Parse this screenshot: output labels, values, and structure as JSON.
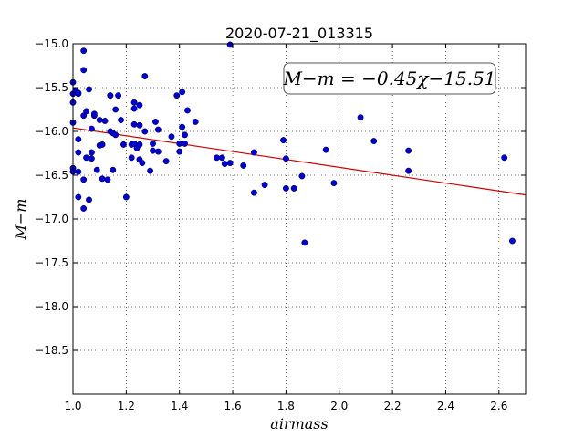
{
  "chart_data": {
    "type": "scatter",
    "title": "2020-07-21_013315",
    "xlabel": "airmass",
    "ylabel": "M−m",
    "xlim": [
      1.0,
      2.7
    ],
    "ylim": [
      -15.0,
      -19.0
    ],
    "y_inverted": true,
    "grid": true,
    "x_ticks": [
      1.0,
      1.2,
      1.4,
      1.6,
      1.8,
      2.0,
      2.2,
      2.4,
      2.6
    ],
    "x_tick_labels": [
      "1.0",
      "1.2",
      "1.4",
      "1.6",
      "1.8",
      "2.0",
      "2.2",
      "2.4",
      "2.6"
    ],
    "y_ticks": [
      -15.0,
      -15.5,
      -16.0,
      -16.5,
      -17.0,
      -17.5,
      -18.0,
      -18.5
    ],
    "y_tick_labels": [
      "−15.0",
      "−15.5",
      "−16.0",
      "−16.5",
      "−17.0",
      "−17.5",
      "−18.0",
      "−18.5"
    ],
    "annotation": "M−m = −0.45χ−15.51",
    "fit": {
      "slope": -0.45,
      "intercept": -15.51,
      "color": "#cc0000"
    },
    "point_color": "#0000cc",
    "points": [
      [
        1.0,
        -15.44
      ],
      [
        1.0,
        -15.57
      ],
      [
        1.0,
        -15.67
      ],
      [
        1.0,
        -15.9
      ],
      [
        1.0,
        -16.42
      ],
      [
        1.0,
        -16.46
      ],
      [
        1.01,
        -15.53
      ],
      [
        1.02,
        -15.56
      ],
      [
        1.02,
        -15.57
      ],
      [
        1.02,
        -16.09
      ],
      [
        1.02,
        -16.24
      ],
      [
        1.02,
        -16.46
      ],
      [
        1.02,
        -16.75
      ],
      [
        1.04,
        -15.08
      ],
      [
        1.04,
        -15.3
      ],
      [
        1.04,
        -15.82
      ],
      [
        1.04,
        -16.55
      ],
      [
        1.04,
        -16.88
      ],
      [
        1.05,
        -15.77
      ],
      [
        1.05,
        -16.3
      ],
      [
        1.06,
        -15.52
      ],
      [
        1.06,
        -16.78
      ],
      [
        1.07,
        -15.97
      ],
      [
        1.07,
        -16.24
      ],
      [
        1.07,
        -16.31
      ],
      [
        1.08,
        -15.82
      ],
      [
        1.08,
        -15.8
      ],
      [
        1.09,
        -16.44
      ],
      [
        1.1,
        -15.87
      ],
      [
        1.1,
        -16.16
      ],
      [
        1.11,
        -16.15
      ],
      [
        1.11,
        -16.54
      ],
      [
        1.12,
        -15.88
      ],
      [
        1.13,
        -16.55
      ],
      [
        1.14,
        -15.59
      ],
      [
        1.14,
        -15.59
      ],
      [
        1.14,
        -16.0
      ],
      [
        1.15,
        -16.02
      ],
      [
        1.15,
        -16.44
      ],
      [
        1.16,
        -15.75
      ],
      [
        1.16,
        -16.04
      ],
      [
        1.17,
        -15.59
      ],
      [
        1.18,
        -15.87
      ],
      [
        1.19,
        -16.15
      ],
      [
        1.2,
        -16.75
      ],
      [
        1.22,
        -16.15
      ],
      [
        1.22,
        -16.3
      ],
      [
        1.23,
        -15.67
      ],
      [
        1.23,
        -15.74
      ],
      [
        1.23,
        -15.92
      ],
      [
        1.23,
        -16.14
      ],
      [
        1.24,
        -16.19
      ],
      [
        1.25,
        -15.7
      ],
      [
        1.25,
        -15.93
      ],
      [
        1.25,
        -16.15
      ],
      [
        1.25,
        -16.32
      ],
      [
        1.26,
        -16.36
      ],
      [
        1.27,
        -15.37
      ],
      [
        1.27,
        -16.0
      ],
      [
        1.29,
        -16.45
      ],
      [
        1.3,
        -16.14
      ],
      [
        1.3,
        -16.22
      ],
      [
        1.31,
        -15.89
      ],
      [
        1.32,
        -15.98
      ],
      [
        1.32,
        -16.23
      ],
      [
        1.35,
        -16.34
      ],
      [
        1.37,
        -16.06
      ],
      [
        1.39,
        -15.59
      ],
      [
        1.4,
        -16.14
      ],
      [
        1.4,
        -16.23
      ],
      [
        1.41,
        -15.55
      ],
      [
        1.41,
        -15.95
      ],
      [
        1.42,
        -16.04
      ],
      [
        1.42,
        -16.14
      ],
      [
        1.43,
        -15.76
      ],
      [
        1.46,
        -15.89
      ],
      [
        1.54,
        -16.3
      ],
      [
        1.56,
        -16.3
      ],
      [
        1.57,
        -16.37
      ],
      [
        1.59,
        -15.01
      ],
      [
        1.59,
        -16.36
      ],
      [
        1.64,
        -16.39
      ],
      [
        1.68,
        -16.24
      ],
      [
        1.68,
        -16.7
      ],
      [
        1.72,
        -16.61
      ],
      [
        1.79,
        -16.1
      ],
      [
        1.8,
        -16.31
      ],
      [
        1.8,
        -16.65
      ],
      [
        1.83,
        -16.65
      ],
      [
        1.86,
        -16.51
      ],
      [
        1.87,
        -17.27
      ],
      [
        1.95,
        -16.21
      ],
      [
        1.98,
        -16.59
      ],
      [
        2.08,
        -15.84
      ],
      [
        2.13,
        -16.11
      ],
      [
        2.26,
        -16.22
      ],
      [
        2.26,
        -16.45
      ],
      [
        2.62,
        -16.3
      ],
      [
        2.65,
        -17.25
      ]
    ]
  }
}
